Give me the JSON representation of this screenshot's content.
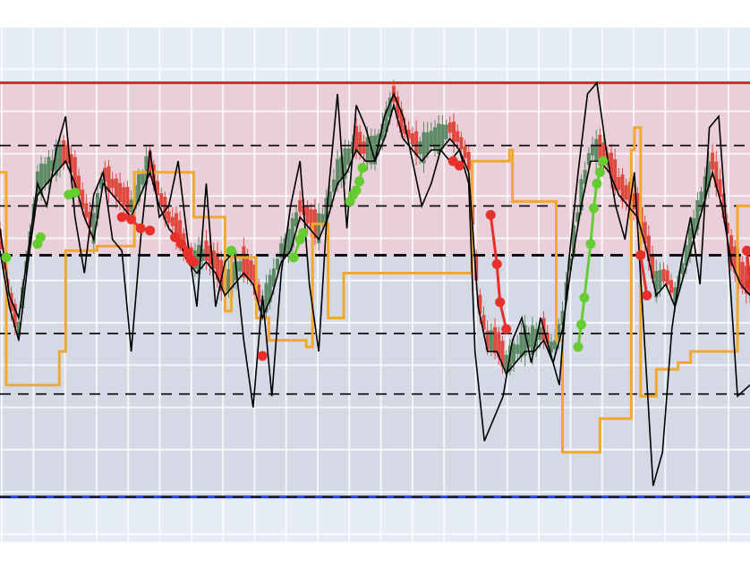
{
  "chart_data": {
    "type": "line",
    "title": "",
    "xlabel": "",
    "ylabel": "",
    "x_range": [
      0,
      240
    ],
    "ylim": [
      -1.15,
      1.15
    ],
    "grid": true,
    "legend": "none",
    "colors": {
      "plot_bg": "#e5ecf6",
      "grid": "#ffffff",
      "upper_zone": "#e8cfd9",
      "lower_zone": "#d5d9e6",
      "upper_line": "#d62728",
      "lower_line": "#1f3fd6",
      "dash": "#111111",
      "candle_up": "#5e8a66",
      "candle_down": "#e0493f",
      "price_line": "#000000",
      "step_line": "#f0a830",
      "dot_up": "#66cc33",
      "dot_down": "#e8302a"
    },
    "levels": {
      "upper": 0.9,
      "lower": -0.95,
      "dashed": [
        0.62,
        0.35,
        -0.22,
        -0.49
      ],
      "mid": 0.13
    },
    "series": [
      {
        "kind": "step",
        "values": [
          [
            0,
            0.5
          ],
          [
            2,
            -0.45
          ],
          [
            19,
            -0.3
          ],
          [
            21,
            0.15
          ],
          [
            31,
            0.17
          ],
          [
            43,
            0.5
          ],
          [
            62,
            0.3
          ],
          [
            72,
            -0.12
          ],
          [
            74,
            0.12
          ],
          [
            82,
            -0.15
          ],
          [
            86,
            -0.25
          ],
          [
            98,
            -0.28
          ],
          [
            100,
            0.27
          ],
          [
            105,
            -0.15
          ],
          [
            110,
            0.05
          ],
          [
            151,
            0.55
          ],
          [
            163,
            0.6
          ],
          [
            164,
            0.37
          ],
          [
            178,
            -0.25
          ],
          [
            180,
            -0.75
          ],
          [
            192,
            -0.6
          ],
          [
            202,
            0.6
          ],
          [
            203,
            0.7
          ],
          [
            205,
            -0.5
          ],
          [
            210,
            -0.38
          ],
          [
            217,
            -0.35
          ],
          [
            221,
            -0.3
          ],
          [
            236,
            0.35
          ],
          [
            240,
            0.35
          ]
        ]
      },
      {
        "kind": "line",
        "values": [
          [
            0,
            0.25
          ],
          [
            3,
            -0.05
          ],
          [
            6,
            -0.15
          ],
          [
            9,
            0.15
          ],
          [
            12,
            0.45
          ],
          [
            15,
            0.35
          ],
          [
            18,
            0.6
          ],
          [
            21,
            0.75
          ],
          [
            24,
            0.3
          ],
          [
            27,
            0.05
          ],
          [
            30,
            0.4
          ],
          [
            33,
            0.5
          ],
          [
            36,
            0.2
          ],
          [
            39,
            0.15
          ],
          [
            42,
            -0.3
          ],
          [
            45,
            0.2
          ],
          [
            48,
            0.6
          ],
          [
            51,
            0.3
          ],
          [
            54,
            0.35
          ],
          [
            57,
            0.55
          ],
          [
            60,
            0.2
          ],
          [
            63,
            -0.1
          ],
          [
            66,
            0.45
          ],
          [
            69,
            -0.1
          ],
          [
            72,
            0.1
          ],
          [
            75,
            0.15
          ],
          [
            78,
            -0.25
          ],
          [
            81,
            -0.55
          ],
          [
            84,
            -0.05
          ],
          [
            87,
            -0.5
          ],
          [
            90,
            0.05
          ],
          [
            93,
            0.35
          ],
          [
            96,
            0.55
          ],
          [
            99,
            0.0
          ],
          [
            102,
            -0.3
          ],
          [
            105,
            0.4
          ],
          [
            108,
            0.85
          ],
          [
            111,
            0.25
          ],
          [
            114,
            0.8
          ],
          [
            117,
            0.7
          ],
          [
            120,
            0.55
          ],
          [
            123,
            0.75
          ],
          [
            126,
            0.85
          ],
          [
            129,
            0.75
          ],
          [
            132,
            0.55
          ],
          [
            135,
            0.35
          ],
          [
            138,
            0.45
          ],
          [
            141,
            0.6
          ],
          [
            144,
            0.55
          ],
          [
            147,
            0.6
          ],
          [
            150,
            0.45
          ],
          [
            152,
            -0.3
          ],
          [
            155,
            -0.7
          ],
          [
            158,
            -0.6
          ],
          [
            161,
            -0.5
          ],
          [
            164,
            -0.25
          ],
          [
            167,
            -0.15
          ],
          [
            170,
            -0.35
          ],
          [
            173,
            -0.15
          ],
          [
            176,
            -0.3
          ],
          [
            179,
            -0.45
          ],
          [
            182,
            0.1
          ],
          [
            185,
            0.5
          ],
          [
            188,
            0.85
          ],
          [
            191,
            0.9
          ],
          [
            194,
            0.6
          ],
          [
            197,
            0.35
          ],
          [
            200,
            0.2
          ],
          [
            203,
            0.5
          ],
          [
            206,
            -0.2
          ],
          [
            209,
            -0.9
          ],
          [
            212,
            -0.75
          ],
          [
            215,
            -0.2
          ],
          [
            218,
            0.1
          ],
          [
            221,
            0.3
          ],
          [
            224,
            0.0
          ],
          [
            227,
            0.7
          ],
          [
            230,
            0.75
          ],
          [
            233,
            0.15
          ],
          [
            236,
            -0.5
          ],
          [
            240,
            -0.45
          ]
        ]
      },
      {
        "kind": "line",
        "values": [
          [
            0,
            0.15
          ],
          [
            3,
            -0.1
          ],
          [
            6,
            -0.25
          ],
          [
            9,
            0.1
          ],
          [
            12,
            0.4
          ],
          [
            15,
            0.45
          ],
          [
            18,
            0.5
          ],
          [
            21,
            0.55
          ],
          [
            24,
            0.45
          ],
          [
            27,
            0.3
          ],
          [
            30,
            0.2
          ],
          [
            33,
            0.45
          ],
          [
            36,
            0.4
          ],
          [
            39,
            0.35
          ],
          [
            42,
            0.3
          ],
          [
            45,
            0.4
          ],
          [
            48,
            0.5
          ],
          [
            51,
            0.35
          ],
          [
            54,
            0.25
          ],
          [
            57,
            0.2
          ],
          [
            60,
            0.1
          ],
          [
            63,
            0.05
          ],
          [
            66,
            0.1
          ],
          [
            69,
            0.05
          ],
          [
            72,
            -0.05
          ],
          [
            75,
            0.0
          ],
          [
            78,
            0.05
          ],
          [
            81,
            0.0
          ],
          [
            84,
            -0.15
          ],
          [
            87,
            -0.05
          ],
          [
            90,
            0.1
          ],
          [
            93,
            0.15
          ],
          [
            96,
            0.3
          ],
          [
            99,
            0.25
          ],
          [
            102,
            0.2
          ],
          [
            105,
            0.3
          ],
          [
            108,
            0.45
          ],
          [
            111,
            0.5
          ],
          [
            114,
            0.6
          ],
          [
            117,
            0.55
          ],
          [
            120,
            0.55
          ],
          [
            123,
            0.65
          ],
          [
            126,
            0.8
          ],
          [
            129,
            0.65
          ],
          [
            132,
            0.6
          ],
          [
            135,
            0.55
          ],
          [
            138,
            0.6
          ],
          [
            141,
            0.6
          ],
          [
            144,
            0.65
          ],
          [
            147,
            0.6
          ],
          [
            150,
            0.5
          ],
          [
            153,
            -0.1
          ],
          [
            156,
            -0.3
          ],
          [
            159,
            -0.3
          ],
          [
            162,
            -0.4
          ],
          [
            165,
            -0.35
          ],
          [
            168,
            -0.3
          ],
          [
            171,
            -0.3
          ],
          [
            174,
            -0.25
          ],
          [
            177,
            -0.35
          ],
          [
            180,
            -0.2
          ],
          [
            183,
            0.1
          ],
          [
            186,
            0.35
          ],
          [
            189,
            0.55
          ],
          [
            192,
            0.55
          ],
          [
            195,
            0.5
          ],
          [
            198,
            0.4
          ],
          [
            201,
            0.35
          ],
          [
            204,
            0.3
          ],
          [
            207,
            0.15
          ],
          [
            210,
            -0.05
          ],
          [
            213,
            0.0
          ],
          [
            216,
            -0.1
          ],
          [
            219,
            0.05
          ],
          [
            222,
            0.2
          ],
          [
            225,
            0.35
          ],
          [
            228,
            0.5
          ],
          [
            231,
            0.35
          ],
          [
            234,
            0.1
          ],
          [
            237,
            0.0
          ],
          [
            240,
            -0.05
          ]
        ]
      },
      {
        "kind": "markers",
        "color": "up",
        "values": [
          [
            2,
            0.12
          ],
          [
            12,
            0.18
          ],
          [
            13,
            0.21
          ],
          [
            22,
            0.4
          ],
          [
            24,
            0.41
          ],
          [
            74,
            0.15
          ],
          [
            94,
            0.12
          ],
          [
            96,
            0.2
          ],
          [
            97,
            0.23
          ],
          [
            112,
            0.37
          ],
          [
            113,
            0.4
          ],
          [
            114,
            0.42
          ],
          [
            115,
            0.46
          ],
          [
            116,
            0.52
          ],
          [
            185,
            -0.28
          ],
          [
            186,
            -0.18
          ],
          [
            187,
            -0.06
          ],
          [
            189,
            0.18
          ],
          [
            190,
            0.34
          ],
          [
            191,
            0.45
          ],
          [
            192,
            0.5
          ],
          [
            193,
            0.55
          ]
        ]
      },
      {
        "kind": "markers",
        "color": "down",
        "values": [
          [
            39,
            0.3
          ],
          [
            42,
            0.29
          ],
          [
            45,
            0.25
          ],
          [
            48,
            0.24
          ],
          [
            56,
            0.21
          ],
          [
            58,
            0.18
          ],
          [
            60,
            0.14
          ],
          [
            61,
            0.11
          ],
          [
            62,
            0.1
          ],
          [
            84,
            -0.32
          ],
          [
            145,
            0.55
          ],
          [
            147,
            0.53
          ],
          [
            157,
            0.31
          ],
          [
            159,
            0.09
          ],
          [
            160,
            -0.08
          ],
          [
            162,
            -0.2
          ],
          [
            205,
            0.13
          ],
          [
            207,
            -0.05
          ],
          [
            239,
            0.15
          ],
          [
            240,
            0.0
          ]
        ]
      }
    ]
  }
}
